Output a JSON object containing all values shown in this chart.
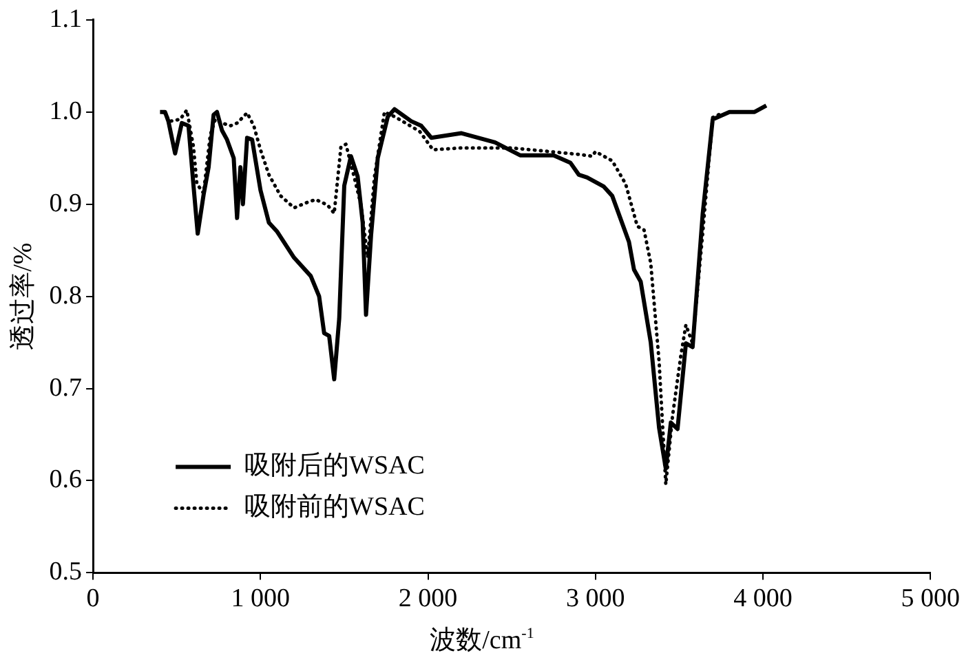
{
  "chart_data": {
    "type": "line",
    "xlabel": "波数/cm$^{-1}$",
    "ylabel": "透过率/%",
    "xlim": [
      0,
      5000
    ],
    "ylim": [
      0.5,
      1.1
    ],
    "xticks": [
      0,
      {
        "value": 1000,
        "label": "1 000"
      },
      {
        "value": 2000,
        "label": "2 000"
      },
      {
        "value": 3000,
        "label": "3 000"
      },
      {
        "value": 4000,
        "label": "4 000"
      },
      {
        "value": 5000,
        "label": "5 000"
      }
    ],
    "yticks": [
      {
        "value": 0.5,
        "label": "0.5"
      },
      {
        "value": 0.6,
        "label": "0.6"
      },
      {
        "value": 0.7,
        "label": "0.7"
      },
      {
        "value": 0.8,
        "label": "0.8"
      },
      {
        "value": 0.9,
        "label": "0.9"
      },
      {
        "value": 1,
        "label": "1.0"
      },
      {
        "value": 1.1,
        "label": "1.1"
      }
    ],
    "grid": false,
    "legend": "bottom left",
    "marker": "none",
    "series": [
      {
        "name": "吸附后的WSAC",
        "color": "#000000",
        "line_style": "solid",
        "x": [
          400,
          430,
          450,
          490,
          530,
          570,
          600,
          625,
          660,
          690,
          720,
          740,
          770,
          800,
          840,
          860,
          880,
          895,
          920,
          950,
          1000,
          1050,
          1100,
          1200,
          1300,
          1350,
          1380,
          1410,
          1440,
          1470,
          1500,
          1540,
          1580,
          1610,
          1630,
          1660,
          1700,
          1720,
          1760,
          1800,
          1900,
          1960,
          2020,
          2200,
          2400,
          2550,
          2750,
          2850,
          2900,
          2950,
          3050,
          3100,
          3200,
          3230,
          3270,
          3330,
          3380,
          3420,
          3450,
          3490,
          3540,
          3580,
          3640,
          3700,
          3800,
          3950,
          4020
        ],
        "values": [
          1.0,
          1.0,
          0.99,
          0.955,
          0.988,
          0.985,
          0.92,
          0.868,
          0.91,
          0.94,
          0.997,
          1.0,
          0.98,
          0.97,
          0.95,
          0.885,
          0.94,
          0.9,
          0.972,
          0.97,
          0.915,
          0.88,
          0.87,
          0.842,
          0.822,
          0.8,
          0.76,
          0.757,
          0.71,
          0.776,
          0.92,
          0.952,
          0.93,
          0.88,
          0.78,
          0.866,
          0.95,
          0.965,
          0.995,
          1.003,
          0.99,
          0.985,
          0.972,
          0.977,
          0.967,
          0.953,
          0.953,
          0.945,
          0.932,
          0.929,
          0.919,
          0.909,
          0.859,
          0.829,
          0.816,
          0.75,
          0.657,
          0.613,
          0.663,
          0.656,
          0.749,
          0.745,
          0.889,
          0.992,
          1.0,
          1.0,
          1.007
        ]
      },
      {
        "name": "吸附前的WSAC",
        "color": "#000000",
        "line_style": "dotted",
        "x": [
          420,
          460,
          520,
          560,
          600,
          620,
          660,
          700,
          730,
          770,
          820,
          860,
          920,
          960,
          1000,
          1050,
          1120,
          1200,
          1280,
          1330,
          1400,
          1440,
          1480,
          1510,
          1560,
          1600,
          1640,
          1680,
          1740,
          1800,
          1950,
          2030,
          2200,
          2500,
          2900,
          2980,
          3000,
          3100,
          3180,
          3250,
          3290,
          3330,
          3380,
          3420,
          3460,
          3510,
          3540,
          3580,
          3640,
          3700,
          3760
        ],
        "values": [
          1.0,
          0.99,
          0.992,
          1.002,
          0.962,
          0.922,
          0.912,
          0.975,
          0.992,
          0.988,
          0.985,
          0.988,
          0.999,
          0.985,
          0.959,
          0.932,
          0.909,
          0.896,
          0.902,
          0.905,
          0.899,
          0.89,
          0.962,
          0.965,
          0.929,
          0.899,
          0.842,
          0.929,
          1.0,
          0.995,
          0.979,
          0.959,
          0.961,
          0.961,
          0.954,
          0.952,
          0.957,
          0.947,
          0.922,
          0.876,
          0.872,
          0.836,
          0.729,
          0.596,
          0.67,
          0.736,
          0.769,
          0.749,
          0.868,
          0.994,
          0.999
        ]
      }
    ]
  }
}
